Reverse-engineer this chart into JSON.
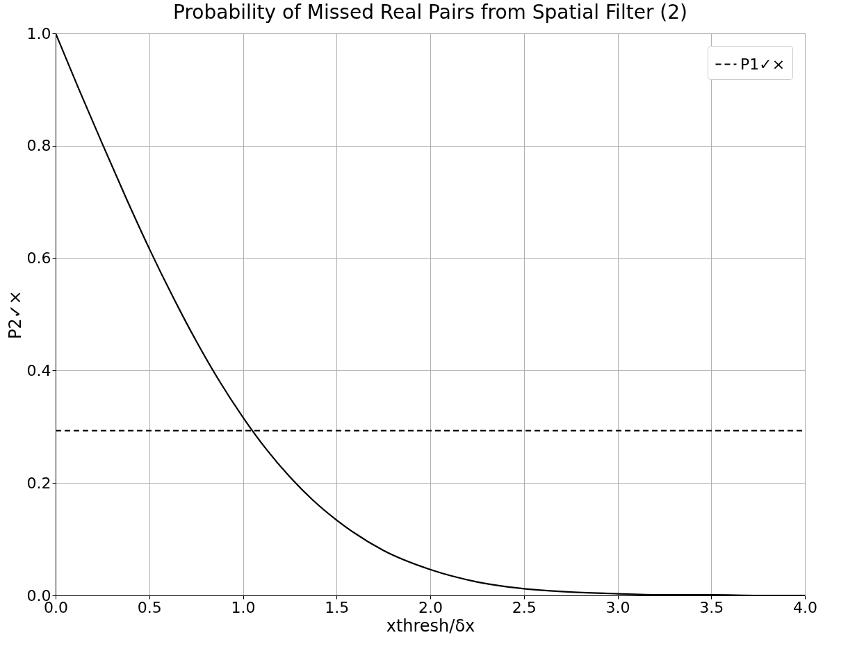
{
  "chart_data": {
    "type": "line",
    "title": "Probability of Missed Real Pairs from Spatial Filter (2)",
    "xlabel": "xthresh/δx",
    "ylabel": "P2✓×",
    "xlim": [
      0,
      4
    ],
    "ylim": [
      0,
      1
    ],
    "xticks": [
      {
        "value": 0,
        "label": "0.0"
      },
      {
        "value": 0.5,
        "label": "0.5"
      },
      {
        "value": 1,
        "label": "1.0"
      },
      {
        "value": 1.5,
        "label": "1.5"
      },
      {
        "value": 2,
        "label": "2.0"
      },
      {
        "value": 2.5,
        "label": "2.5"
      },
      {
        "value": 3,
        "label": "3.0"
      },
      {
        "value": 3.5,
        "label": "3.5"
      },
      {
        "value": 4,
        "label": "4.0"
      }
    ],
    "yticks": [
      {
        "value": 0,
        "label": "0.0"
      },
      {
        "value": 0.2,
        "label": "0.2"
      },
      {
        "value": 0.4,
        "label": "0.4"
      },
      {
        "value": 0.6,
        "label": "0.6"
      },
      {
        "value": 0.8,
        "label": "0.8"
      },
      {
        "value": 1,
        "label": "1.0"
      }
    ],
    "grid": true,
    "legend": "top right",
    "marker": "none",
    "series": [
      {
        "color": "#000000",
        "line_style": "solid",
        "x": [
          0,
          0.125,
          0.25,
          0.375,
          0.5,
          0.625,
          0.75,
          0.875,
          1.0,
          1.125,
          1.25,
          1.375,
          1.5,
          1.75,
          2.0,
          2.25,
          2.5,
          2.75,
          3.0,
          3.25,
          3.5,
          3.75,
          4.0
        ],
        "values": [
          1.0,
          0.9,
          0.803,
          0.708,
          0.617,
          0.532,
          0.453,
          0.381,
          0.317,
          0.26,
          0.211,
          0.169,
          0.134,
          0.08,
          0.046,
          0.024,
          0.012,
          0.006,
          0.003,
          0.001,
          0.001,
          0.0,
          0.0
        ]
      },
      {
        "name": "P1✓×",
        "color": "#000000",
        "line_style": "dashed",
        "x": [
          0,
          4
        ],
        "values": [
          0.293,
          0.293
        ]
      }
    ]
  }
}
